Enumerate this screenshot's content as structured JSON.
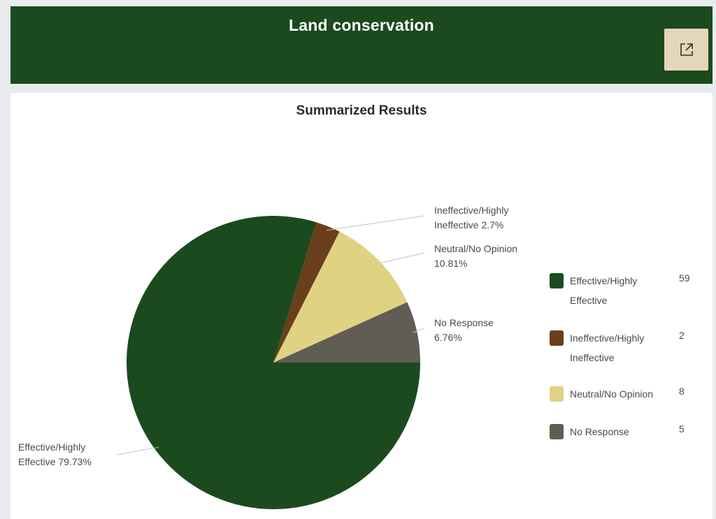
{
  "header": {
    "title": "Land conservation",
    "open_icon": "external-link-icon",
    "background_color": "#1c4a1f",
    "button_color": "#e3d6bb"
  },
  "chart_data": {
    "type": "pie",
    "title": "Summarized Results",
    "slices": [
      {
        "name": "Effective/Highly Effective",
        "value": 59,
        "percent_label": "Effective/Highly Effective 79.73%",
        "color": "#1c4a1f"
      },
      {
        "name": "Ineffective/Highly Ineffective",
        "value": 2,
        "percent_label": "Ineffective/Highly Ineffective 2.7%",
        "color": "#6b3e1c"
      },
      {
        "name": "Neutral/No Opinion",
        "value": 8,
        "percent_label": "Neutral/No Opinion 10.81%",
        "color": "#e0d283"
      },
      {
        "name": "No Response",
        "value": 5,
        "percent_label": "No Response 6.76%",
        "color": "#5f5d54"
      }
    ],
    "legend_placement": "right"
  }
}
